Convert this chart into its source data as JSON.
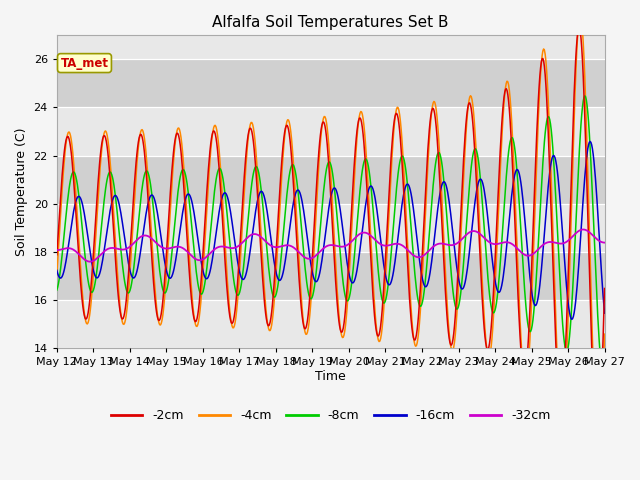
{
  "title": "Alfalfa Soil Temperatures Set B",
  "xlabel": "Time",
  "ylabel": "Soil Temperature (C)",
  "ylim": [
    14,
    27
  ],
  "yticks": [
    14,
    16,
    18,
    20,
    22,
    24,
    26
  ],
  "x_tick_days": [
    12,
    13,
    14,
    15,
    16,
    17,
    18,
    19,
    20,
    21,
    22,
    23,
    24,
    25,
    26,
    27
  ],
  "series_colors": {
    "-2cm": "#dd0000",
    "-4cm": "#ff8800",
    "-8cm": "#00cc00",
    "-16cm": "#0000cc",
    "-32cm": "#cc00cc"
  },
  "annotation_text": "TA_met",
  "annotation_color": "#cc0000",
  "annotation_bg": "#ffffcc",
  "annotation_border": "#999900",
  "plot_bg_light": "#e8e8e8",
  "plot_bg_dark": "#d0d0d0",
  "fig_bg": "#f5f5f5",
  "title_fontsize": 11,
  "axis_label_fontsize": 9,
  "tick_fontsize": 8,
  "legend_fontsize": 9
}
